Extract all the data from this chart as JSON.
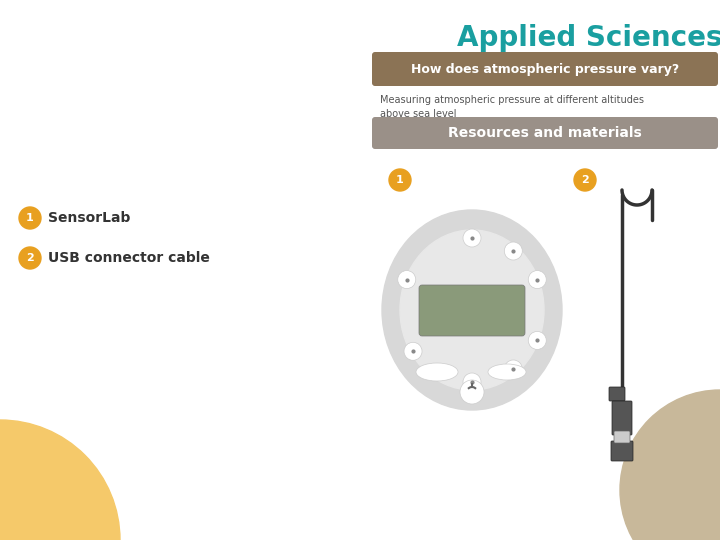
{
  "bg_color": "#ffffff",
  "title_text": "Applied Sciences",
  "title_color": "#1a9fa0",
  "header_text": "How does atmospheric pressure vary?",
  "header_bg": "#8B7355",
  "header_text_color": "#ffffff",
  "subtitle_text": "Measuring atmospheric pressure at different altitudes\nabove sea level",
  "subtitle_color": "#555555",
  "section_text": "Resources and materials",
  "section_bg": "#9a9088",
  "section_text_color": "#ffffff",
  "item1_label": "1",
  "item1_text": "SensorLab",
  "item2_label": "2",
  "item2_text": "USB connector cable",
  "badge_color": "#E8A020",
  "badge_text_color": "#ffffff",
  "device_outer_color": "#d8d8d8",
  "device_inner_color": "#e8e8e8",
  "display_color": "#8a9a7a",
  "icon_color": "#ffffff",
  "bottom_left_circle_color": "#f5c96a",
  "bottom_right_circle_color": "#c8b89a",
  "cable_color": "#333333",
  "usb_body_color": "#555555",
  "usb_plug_color": "#888888"
}
